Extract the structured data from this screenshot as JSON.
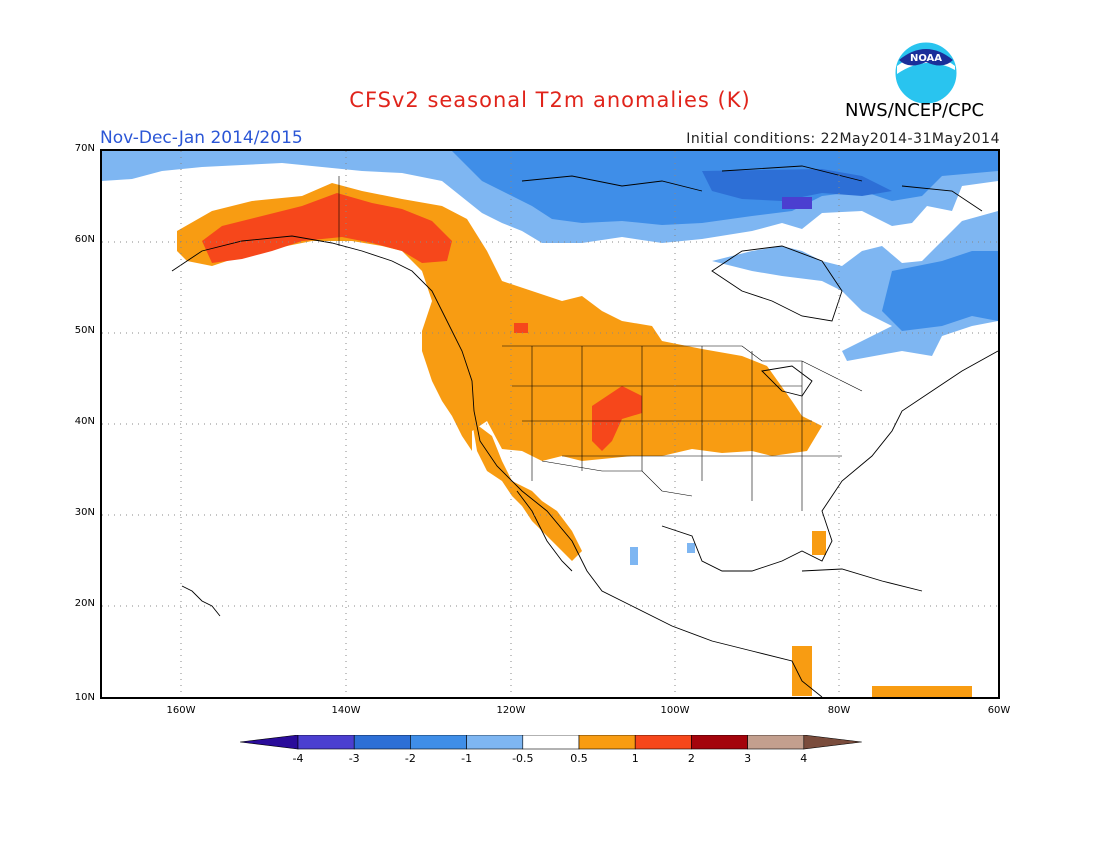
{
  "header": {
    "title": "CFSv2 seasonal T2m anomalies (K)",
    "agency": "NWS/NCEP/CPC",
    "period": "Nov-Dec-Jan 2014/2015",
    "initial_conditions": "Initial conditions: 22May2014-31May2014",
    "logo_text": "NOAA"
  },
  "map": {
    "lat_labels": [
      "70N",
      "60N",
      "50N",
      "40N",
      "30N",
      "20N",
      "10N"
    ],
    "lon_labels": [
      "160W",
      "140W",
      "120W",
      "100W",
      "80W",
      "60W"
    ]
  },
  "legend": {
    "labels": [
      "-4",
      "-3",
      "-2",
      "-1",
      "-0.5",
      "0.5",
      "1",
      "2",
      "3",
      "4"
    ],
    "colors": [
      "#2a0c9a",
      "#4b3fd0",
      "#2d6fd6",
      "#3f8ee8",
      "#7eb6f2",
      "#ffffff",
      "#f89c12",
      "#f6471b",
      "#a4040c",
      "#c39f8e",
      "#7a4c3c"
    ]
  },
  "colors": {
    "warm_0_5_1": "#f89c12",
    "warm_1_2": "#f6471b",
    "cool_0_5_1": "#7eb6f2",
    "cool_1_2": "#3f8ee8",
    "cool_2_3": "#2d6fd6",
    "cool_3_4": "#4b3fd0",
    "title": "#e0241b",
    "period": "#2b56d6"
  }
}
